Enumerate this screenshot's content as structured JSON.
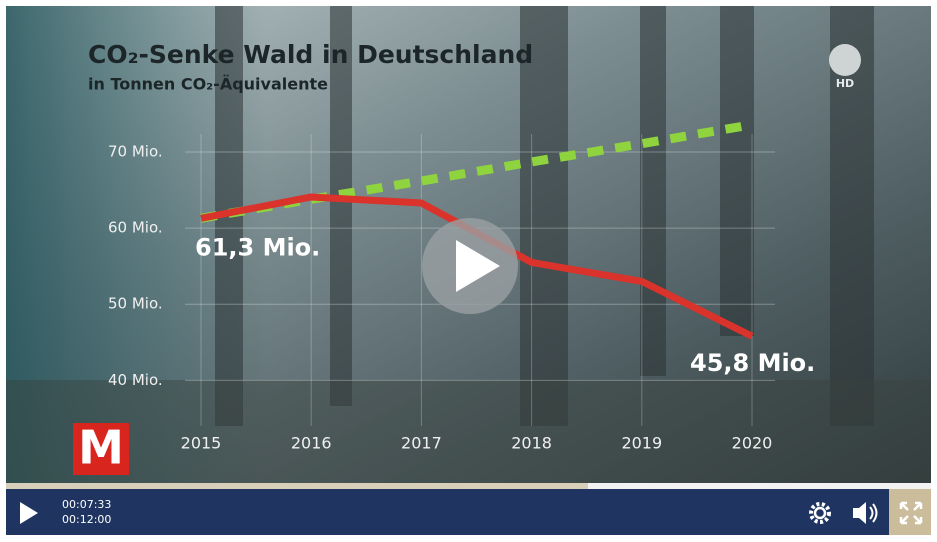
{
  "chart_data": {
    "type": "line",
    "title": "CO₂-Senke Wald in Deutschland",
    "subtitle": "in Tonnen CO₂-Äquivalente",
    "categories": [
      "2015",
      "2016",
      "2017",
      "2018",
      "2019",
      "2020"
    ],
    "series": [
      {
        "color": "#d9332b",
        "values": [
          61.3,
          64.1,
          63.3,
          55.5,
          53.0,
          45.8
        ],
        "value_labels": [
          "61,3 Mio.",
          null,
          null,
          null,
          null,
          "45,8 Mio."
        ]
      },
      {
        "color": "#8fd43f",
        "dashed": true,
        "values": [
          61.3,
          63.8,
          66.2,
          68.7,
          71.1,
          73.6
        ]
      }
    ],
    "ylim": [
      34,
      75
    ],
    "yticks": [
      {
        "value": 40,
        "label": "40 Mio."
      },
      {
        "value": 50,
        "label": "50 Mio."
      },
      {
        "value": 60,
        "label": "60 Mio."
      },
      {
        "value": 70,
        "label": "70 Mio."
      }
    ],
    "grid": true
  },
  "player": {
    "current_time": "00:07:33",
    "duration": "00:12:00"
  },
  "logos": {
    "channel": "HD",
    "brand": "M"
  }
}
